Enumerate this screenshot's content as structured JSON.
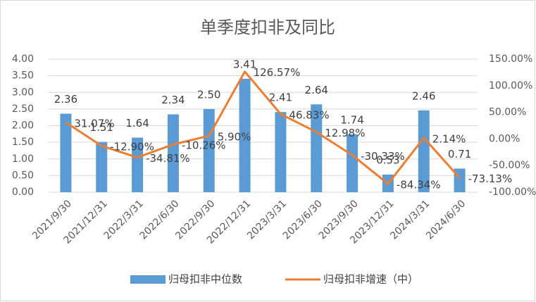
{
  "chart_data": {
    "type": "combo",
    "title": "单季度扣非及同比",
    "categories": [
      "2021/9/30",
      "2021/12/31",
      "2022/3/31",
      "2022/6/30",
      "2022/9/30",
      "2022/12/31",
      "2023/3/31",
      "2023/6/30",
      "2023/9/30",
      "2023/12/31",
      "2024/3/31",
      "2024/6/30"
    ],
    "series": [
      {
        "name": "归母扣非中位数",
        "type": "bar",
        "color": "#5b9bd5",
        "values": [
          2.36,
          1.51,
          1.64,
          2.34,
          2.5,
          3.41,
          2.41,
          2.64,
          1.74,
          0.53,
          2.46,
          0.71
        ],
        "value_labels": [
          "2.36",
          "1.51",
          "1.64",
          "2.34",
          "2.50",
          "3.41",
          "2.41",
          "2.64",
          "1.74",
          "0.53",
          "2.46",
          "0.71"
        ]
      },
      {
        "name": "归母扣非增速（中）",
        "type": "line",
        "axis": "y2",
        "color": "#ed7d31",
        "values": [
          31.07,
          -12.9,
          -34.81,
          -10.26,
          5.9,
          126.57,
          46.83,
          12.98,
          -30.33,
          -84.34,
          2.14,
          -73.13
        ],
        "value_labels": [
          "31.07%",
          "-12.90%",
          "-34.81%",
          "-10.26%",
          "5.90%",
          "126.57%",
          "46.83%",
          "12.98%",
          "-30.33%",
          "-84.34%",
          "2.14%",
          "-73.13%"
        ]
      }
    ],
    "ylim": [
      0,
      4
    ],
    "yticks": [
      {
        "value": 0,
        "label": "0.00"
      },
      {
        "value": 0.5,
        "label": "0.50"
      },
      {
        "value": 1,
        "label": "1.00"
      },
      {
        "value": 1.5,
        "label": "1.50"
      },
      {
        "value": 2,
        "label": "2.00"
      },
      {
        "value": 2.5,
        "label": "2.50"
      },
      {
        "value": 3,
        "label": "3.00"
      },
      {
        "value": 3.5,
        "label": "3.50"
      },
      {
        "value": 4,
        "label": "4.00"
      }
    ],
    "y2lim": [
      -100,
      150
    ],
    "y2ticks": [
      {
        "value": -100,
        "label": "-100.00%"
      },
      {
        "value": -50,
        "label": "-50.00%"
      },
      {
        "value": 0,
        "label": "0.00%"
      },
      {
        "value": 50,
        "label": "50.00%"
      },
      {
        "value": 100,
        "label": "100.00%"
      },
      {
        "value": 150,
        "label": "150.00%"
      }
    ],
    "grid": true,
    "legend": "bottom"
  }
}
